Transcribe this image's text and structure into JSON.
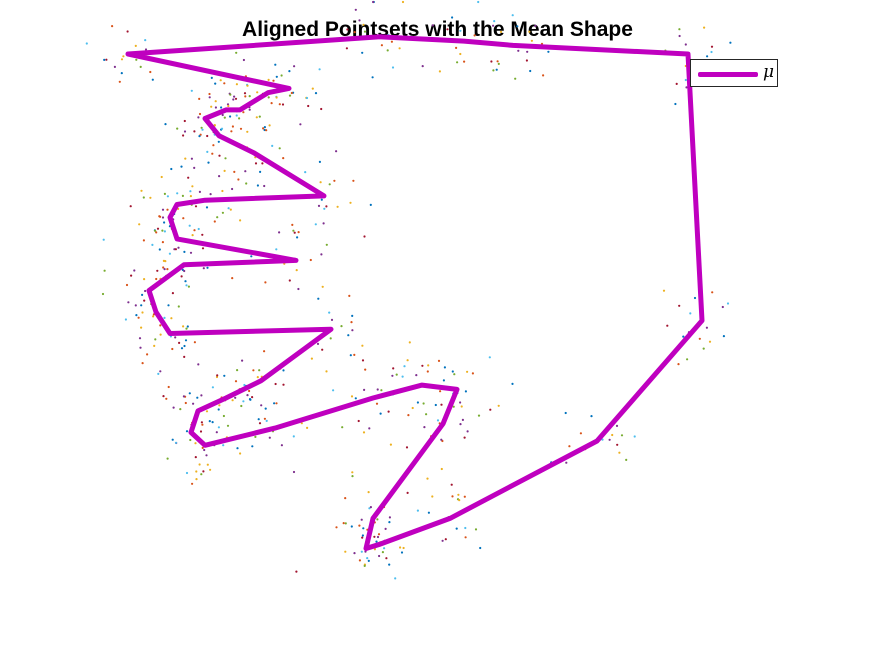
{
  "chart_data": {
    "type": "scatter",
    "title": "Aligned Pointsets with the Mean Shape",
    "xlabel": "",
    "ylabel": "",
    "axes_visible": false,
    "grid": false,
    "legend": {
      "position": "top-right",
      "entries": [
        "μ"
      ]
    },
    "mean_shape_color": "#bf00bf",
    "scatter_colors": [
      "#0072bd",
      "#d95319",
      "#edb120",
      "#7e2f8e",
      "#77ac30",
      "#4dbeee",
      "#a2142f"
    ],
    "points_per_landmark": 18,
    "mean_shape": {
      "name": "μ",
      "x": [
        0.02,
        0.38,
        0.5,
        0.57,
        0.82,
        0.84,
        0.69,
        0.48,
        0.38,
        0.36,
        0.37,
        0.47,
        0.49,
        0.44,
        0.37,
        0.23,
        0.13,
        0.11,
        0.12,
        0.16,
        0.21,
        0.31,
        0.08,
        0.06,
        0.05,
        0.1,
        0.26,
        0.09,
        0.08,
        0.09,
        0.13,
        0.3,
        0.2,
        0.15,
        0.13,
        0.16,
        0.18,
        0.22,
        0.25
      ],
      "y": [
        0.1,
        0.14,
        0.13,
        0.12,
        0.1,
        -0.52,
        -0.8,
        -0.98,
        -1.04,
        -1.05,
        -0.98,
        -0.76,
        -0.68,
        -0.67,
        -0.7,
        -0.77,
        -0.81,
        -0.78,
        -0.73,
        -0.7,
        -0.66,
        -0.54,
        -0.55,
        -0.5,
        -0.45,
        -0.39,
        -0.38,
        -0.33,
        -0.28,
        -0.25,
        -0.24,
        -0.23,
        -0.13,
        -0.09,
        -0.05,
        -0.03,
        -0.03,
        0.01,
        0.02
      ]
    }
  }
}
